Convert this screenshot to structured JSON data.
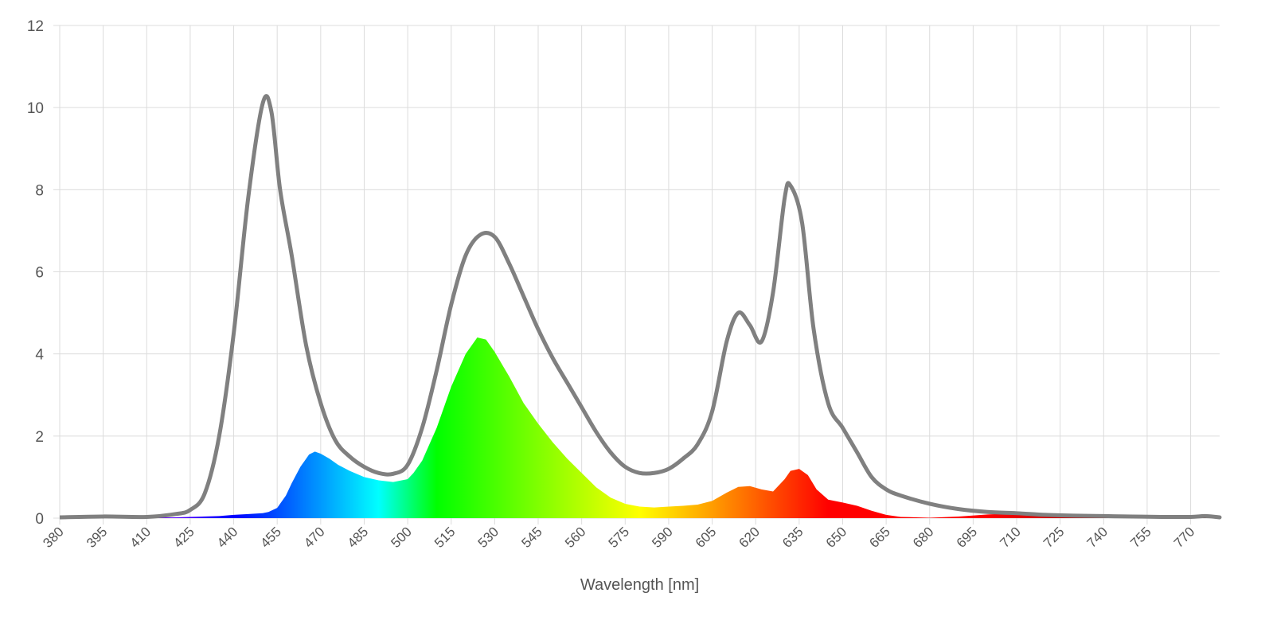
{
  "chart_data": {
    "type": "line",
    "title": "",
    "xlabel": "Wavelength [nm]",
    "ylabel": "",
    "xlim": [
      380,
      780
    ],
    "ylim": [
      0,
      12
    ],
    "grid": true,
    "legend": "none",
    "x_ticks": [
      380,
      395,
      410,
      425,
      440,
      455,
      470,
      485,
      500,
      515,
      530,
      545,
      560,
      575,
      590,
      605,
      620,
      635,
      650,
      665,
      680,
      695,
      710,
      725,
      740,
      755,
      770
    ],
    "x_tick_labels": [
      "380",
      "395",
      "410",
      "425",
      "440",
      "455",
      "470",
      "485",
      "500",
      "515",
      "530",
      "545",
      "560",
      "575",
      "590",
      "605",
      "620",
      "635",
      "650",
      "665",
      "680",
      "695",
      "710",
      "725",
      "740",
      "755",
      "770"
    ],
    "y_ticks": [
      0,
      2,
      4,
      6,
      8,
      10,
      12
    ],
    "y_tick_labels": [
      "0",
      "2",
      "4",
      "6",
      "8",
      "10",
      "12"
    ],
    "series": [
      {
        "style": "line",
        "color": "#808080",
        "x": [
          380,
          395,
          410,
          420,
          425,
          430,
          435,
          440,
          445,
          450,
          453,
          456,
          460,
          465,
          470,
          475,
          480,
          485,
          490,
          495,
          500,
          505,
          510,
          515,
          520,
          525,
          530,
          535,
          540,
          545,
          550,
          555,
          560,
          565,
          570,
          575,
          580,
          585,
          590,
          595,
          600,
          605,
          610,
          614,
          618,
          622,
          626,
          630,
          632,
          636,
          640,
          645,
          650,
          655,
          660,
          665,
          670,
          680,
          690,
          700,
          710,
          720,
          730,
          740,
          750,
          760,
          770,
          775,
          780
        ],
        "values": [
          0.02,
          0.04,
          0.03,
          0.1,
          0.2,
          0.6,
          2.0,
          4.5,
          7.8,
          10.1,
          9.9,
          8.0,
          6.4,
          4.2,
          2.8,
          1.9,
          1.5,
          1.25,
          1.1,
          1.08,
          1.3,
          2.2,
          3.6,
          5.2,
          6.4,
          6.9,
          6.85,
          6.2,
          5.4,
          4.6,
          3.9,
          3.3,
          2.7,
          2.1,
          1.6,
          1.25,
          1.1,
          1.1,
          1.2,
          1.45,
          1.8,
          2.6,
          4.3,
          5.0,
          4.7,
          4.3,
          5.5,
          7.8,
          8.1,
          7.2,
          4.6,
          2.8,
          2.2,
          1.6,
          1.0,
          0.7,
          0.55,
          0.35,
          0.22,
          0.15,
          0.12,
          0.08,
          0.06,
          0.05,
          0.04,
          0.03,
          0.03,
          0.05,
          0.02
        ]
      },
      {
        "style": "spectral-area",
        "x": [
          380,
          400,
          420,
          435,
          440,
          445,
          450,
          452,
          455,
          458,
          460,
          463,
          466,
          468,
          470,
          473,
          476,
          480,
          485,
          490,
          495,
          500,
          502,
          505,
          510,
          515,
          520,
          524,
          527,
          530,
          535,
          540,
          545,
          550,
          555,
          560,
          565,
          570,
          575,
          580,
          585,
          590,
          595,
          600,
          605,
          610,
          614,
          618,
          622,
          626,
          630,
          632,
          635,
          638,
          641,
          645,
          650,
          655,
          660,
          665,
          670,
          680,
          690,
          700,
          710,
          720,
          730,
          740,
          750,
          760,
          770,
          775,
          780
        ],
        "values": [
          0.0,
          0.01,
          0.02,
          0.05,
          0.08,
          0.1,
          0.12,
          0.15,
          0.25,
          0.55,
          0.85,
          1.25,
          1.55,
          1.62,
          1.57,
          1.45,
          1.3,
          1.15,
          1.0,
          0.92,
          0.88,
          0.95,
          1.1,
          1.4,
          2.2,
          3.2,
          4.0,
          4.4,
          4.35,
          4.05,
          3.45,
          2.8,
          2.3,
          1.85,
          1.45,
          1.1,
          0.75,
          0.5,
          0.35,
          0.28,
          0.26,
          0.28,
          0.3,
          0.33,
          0.42,
          0.62,
          0.76,
          0.78,
          0.7,
          0.65,
          0.95,
          1.15,
          1.2,
          1.05,
          0.7,
          0.45,
          0.38,
          0.3,
          0.18,
          0.08,
          0.03,
          0.01,
          0.04,
          0.09,
          0.12,
          0.1,
          0.08,
          0.06,
          0.04,
          0.03,
          0.03,
          0.05,
          0.0
        ]
      }
    ]
  }
}
